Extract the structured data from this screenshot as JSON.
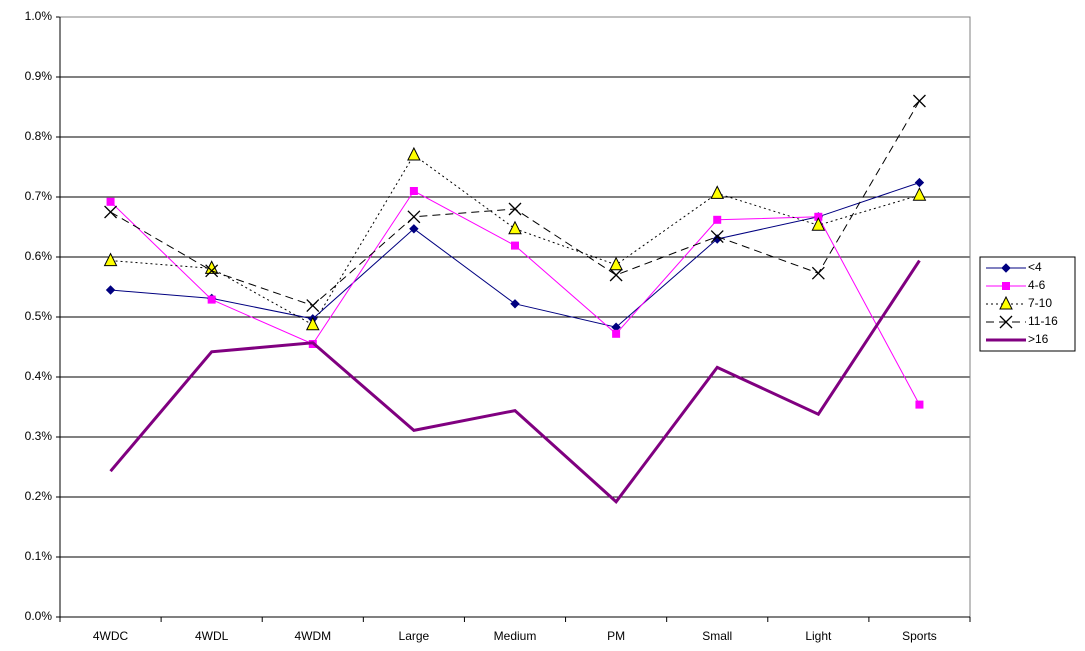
{
  "chart_data": {
    "type": "line",
    "categories": [
      "4WDC",
      "4WDL",
      "4WDM",
      "Large",
      "Medium",
      "PM",
      "Small",
      "Light",
      "Sports"
    ],
    "series": [
      {
        "name": "<4",
        "color": "#000080",
        "marker": "diamond",
        "dash": "solid",
        "line_width": 1,
        "values": [
          0.545,
          0.531,
          0.497,
          0.647,
          0.522,
          0.483,
          0.63,
          0.667,
          0.724
        ]
      },
      {
        "name": "4-6",
        "color": "#ff00ff",
        "marker": "square",
        "dash": "solid",
        "line_width": 1,
        "values": [
          0.692,
          0.529,
          0.455,
          0.71,
          0.619,
          0.472,
          0.662,
          0.667,
          0.354
        ]
      },
      {
        "name": "7-10",
        "color": "#000000",
        "marker": "triangle",
        "marker_fill": "#ffff00",
        "dash": "dotted",
        "line_width": 1,
        "values": [
          0.594,
          0.581,
          0.487,
          0.77,
          0.647,
          0.587,
          0.706,
          0.653,
          0.703
        ]
      },
      {
        "name": "11-16",
        "color": "#000000",
        "marker": "x",
        "dash": "dashed",
        "line_width": 1,
        "values": [
          0.675,
          0.577,
          0.519,
          0.667,
          0.68,
          0.57,
          0.634,
          0.573,
          0.86
        ]
      },
      {
        "name": ">16",
        "color": "#800080",
        "marker": "none",
        "dash": "solid",
        "line_width": 3,
        "values": [
          0.243,
          0.442,
          0.457,
          0.311,
          0.344,
          0.192,
          0.416,
          0.338,
          0.594
        ]
      }
    ],
    "ylim": [
      0,
      1.0
    ],
    "yticks": [
      {
        "value": 0,
        "label": "0.0%"
      },
      {
        "value": 0.1,
        "label": "0.1%"
      },
      {
        "value": 0.2,
        "label": "0.2%"
      },
      {
        "value": 0.3,
        "label": "0.3%"
      },
      {
        "value": 0.4,
        "label": "0.4%"
      },
      {
        "value": 0.5,
        "label": "0.5%"
      },
      {
        "value": 0.6,
        "label": "0.6%"
      },
      {
        "value": 0.7,
        "label": "0.7%"
      },
      {
        "value": 0.8,
        "label": "0.8%"
      },
      {
        "value": 0.9,
        "label": "0.9%"
      },
      {
        "value": 1.0,
        "label": "1.0%"
      }
    ],
    "grid": true,
    "legend": "right"
  }
}
